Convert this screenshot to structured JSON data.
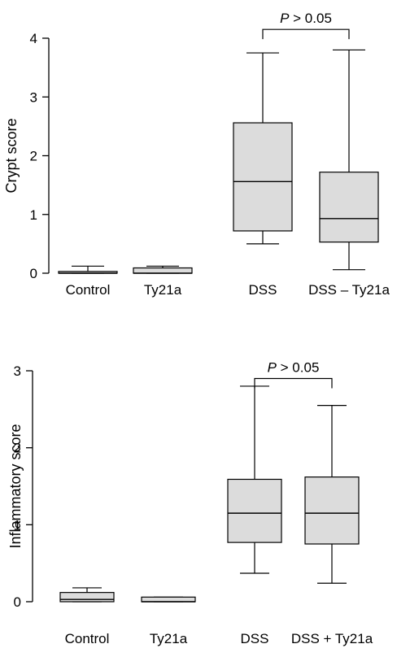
{
  "chart_data": [
    {
      "type": "boxplot",
      "ylabel": "Crypt score",
      "ylim": [
        0,
        4
      ],
      "yticks": [
        "0",
        "1",
        "2",
        "3",
        "4"
      ],
      "categories": [
        "Control",
        "Ty21a",
        "DSS",
        "DSS – Ty21a"
      ],
      "boxes": [
        {
          "min": 0.0,
          "q1": 0.0,
          "median": 0.0,
          "q3": 0.03,
          "max": 0.12
        },
        {
          "min": 0.0,
          "q1": 0.0,
          "median": 0.0,
          "q3": 0.09,
          "max": 0.12
        },
        {
          "min": 0.5,
          "q1": 0.72,
          "median": 1.56,
          "q3": 2.56,
          "max": 3.75
        },
        {
          "min": 0.06,
          "q1": 0.53,
          "median": 0.93,
          "q3": 1.72,
          "max": 3.8
        }
      ],
      "annotation": {
        "text_prefix": "P",
        "text_suffix": " > 0.05",
        "between": [
          2,
          3
        ],
        "y": 4.15
      },
      "colors": {
        "box_fill": "#dcdcdc",
        "stroke": "#000000"
      }
    },
    {
      "type": "boxplot",
      "ylabel": "Inflammatory score",
      "ylim": [
        0,
        3
      ],
      "yticks": [
        "0",
        "1",
        "2",
        "3"
      ],
      "categories": [
        "Control",
        "Ty21a",
        "DSS",
        "DSS + Ty21a"
      ],
      "boxes": [
        {
          "min": 0.0,
          "q1": 0.0,
          "median": 0.03,
          "q3": 0.12,
          "max": 0.18
        },
        {
          "min": 0.0,
          "q1": 0.0,
          "median": 0.0,
          "q3": 0.06,
          "max": 0.06
        },
        {
          "min": 0.37,
          "q1": 0.77,
          "median": 1.15,
          "q3": 1.59,
          "max": 2.8
        },
        {
          "min": 0.24,
          "q1": 0.75,
          "median": 1.15,
          "q3": 1.62,
          "max": 2.55
        }
      ],
      "annotation": {
        "text_prefix": "P",
        "text_suffix": " > 0.05",
        "between": [
          2,
          3
        ],
        "y": 2.9
      },
      "colors": {
        "box_fill": "#dcdcdc",
        "stroke": "#000000"
      }
    }
  ]
}
